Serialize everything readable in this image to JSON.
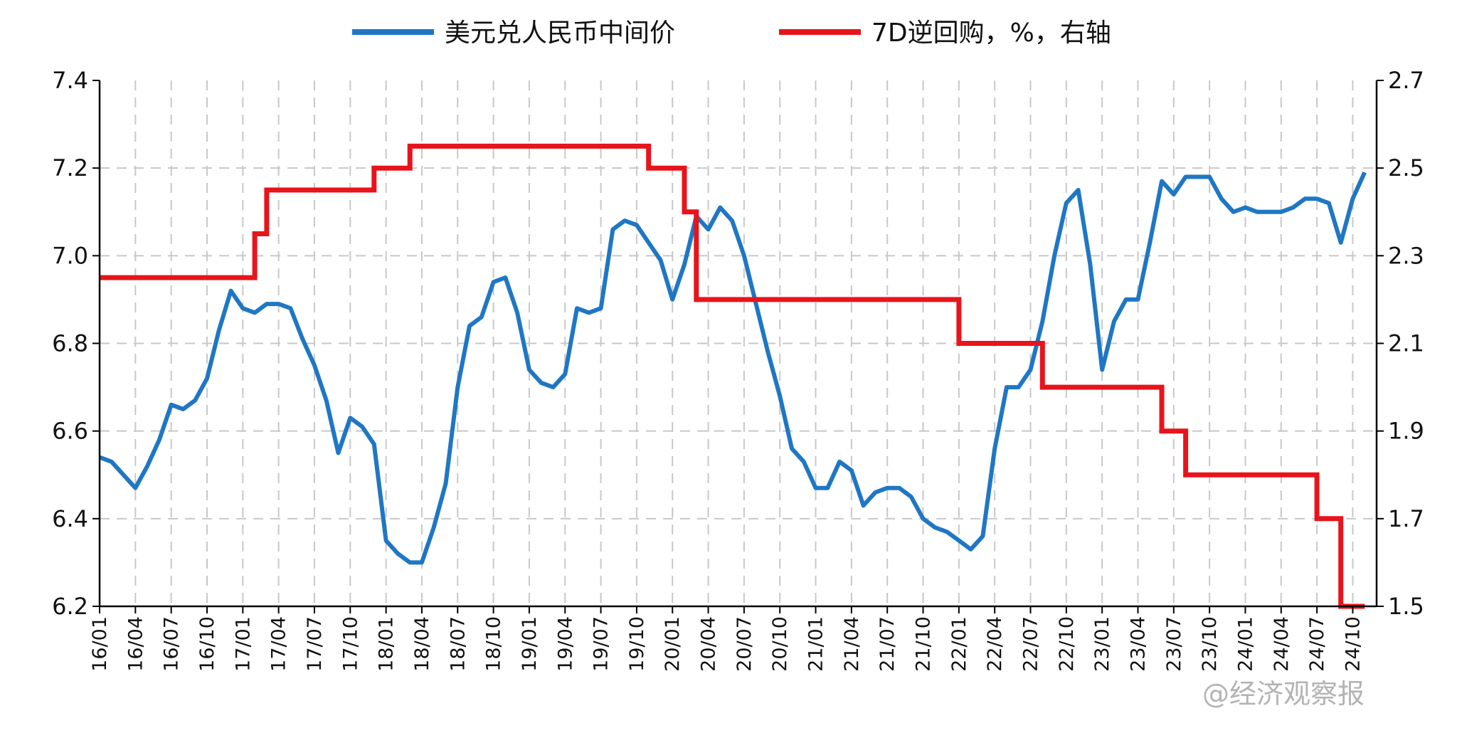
{
  "chart_data": {
    "type": "line",
    "legend": [
      {
        "name": "美元兑人民币中间价",
        "color": "#1f77c4"
      },
      {
        "name": "7D逆回购，%，右轴",
        "color": "#e8141b"
      }
    ],
    "watermark": "@经济观察报",
    "x_categories": [
      "16/01",
      "16/04",
      "16/07",
      "16/10",
      "17/01",
      "17/04",
      "17/07",
      "17/10",
      "18/01",
      "18/04",
      "18/07",
      "18/10",
      "19/01",
      "19/04",
      "19/07",
      "19/10",
      "20/01",
      "20/04",
      "20/07",
      "20/10",
      "21/01",
      "21/04",
      "21/07",
      "21/10",
      "22/01",
      "22/04",
      "22/07",
      "22/10",
      "23/01",
      "23/04",
      "23/07",
      "23/10",
      "24/01",
      "24/04",
      "24/07",
      "24/10"
    ],
    "y_left": {
      "min": 6.2,
      "max": 7.4,
      "ticks": [
        "6.2",
        "6.4",
        "6.6",
        "6.8",
        "7.0",
        "7.2",
        "7.4"
      ]
    },
    "y_right": {
      "min": 1.5,
      "max": 2.7,
      "ticks": [
        "1.5",
        "1.7",
        "1.9",
        "2.1",
        "2.3",
        "2.5",
        "2.7"
      ]
    },
    "grid": true,
    "series": [
      {
        "name": "美元兑人民币中间价",
        "axis": "left",
        "color": "#1f77c4",
        "points": [
          [
            "16/01",
            6.54
          ],
          [
            "16/02",
            6.53
          ],
          [
            "16/03",
            6.5
          ],
          [
            "16/04",
            6.47
          ],
          [
            "16/05",
            6.52
          ],
          [
            "16/06",
            6.58
          ],
          [
            "16/07",
            6.66
          ],
          [
            "16/08",
            6.65
          ],
          [
            "16/09",
            6.67
          ],
          [
            "16/10",
            6.72
          ],
          [
            "16/11",
            6.83
          ],
          [
            "16/12",
            6.92
          ],
          [
            "17/01",
            6.88
          ],
          [
            "17/02",
            6.87
          ],
          [
            "17/03",
            6.89
          ],
          [
            "17/04",
            6.89
          ],
          [
            "17/05",
            6.88
          ],
          [
            "17/06",
            6.81
          ],
          [
            "17/07",
            6.75
          ],
          [
            "17/08",
            6.67
          ],
          [
            "17/09",
            6.55
          ],
          [
            "17/10",
            6.63
          ],
          [
            "17/11",
            6.61
          ],
          [
            "17/12",
            6.57
          ],
          [
            "18/01",
            6.35
          ],
          [
            "18/02",
            6.32
          ],
          [
            "18/03",
            6.3
          ],
          [
            "18/04",
            6.3
          ],
          [
            "18/05",
            6.38
          ],
          [
            "18/06",
            6.48
          ],
          [
            "18/07",
            6.7
          ],
          [
            "18/08",
            6.84
          ],
          [
            "18/09",
            6.86
          ],
          [
            "18/10",
            6.94
          ],
          [
            "18/11",
            6.95
          ],
          [
            "18/12",
            6.87
          ],
          [
            "19/01",
            6.74
          ],
          [
            "19/02",
            6.71
          ],
          [
            "19/03",
            6.7
          ],
          [
            "19/04",
            6.73
          ],
          [
            "19/05",
            6.88
          ],
          [
            "19/06",
            6.87
          ],
          [
            "19/07",
            6.88
          ],
          [
            "19/08",
            7.06
          ],
          [
            "19/09",
            7.08
          ],
          [
            "19/10",
            7.07
          ],
          [
            "19/11",
            7.03
          ],
          [
            "19/12",
            6.99
          ],
          [
            "20/01",
            6.9
          ],
          [
            "20/02",
            6.98
          ],
          [
            "20/03",
            7.09
          ],
          [
            "20/04",
            7.06
          ],
          [
            "20/05",
            7.11
          ],
          [
            "20/06",
            7.08
          ],
          [
            "20/07",
            7.0
          ],
          [
            "20/08",
            6.89
          ],
          [
            "20/09",
            6.78
          ],
          [
            "20/10",
            6.68
          ],
          [
            "20/11",
            6.56
          ],
          [
            "20/12",
            6.53
          ],
          [
            "21/01",
            6.47
          ],
          [
            "21/02",
            6.47
          ],
          [
            "21/03",
            6.53
          ],
          [
            "21/04",
            6.51
          ],
          [
            "21/05",
            6.43
          ],
          [
            "21/06",
            6.46
          ],
          [
            "21/07",
            6.47
          ],
          [
            "21/08",
            6.47
          ],
          [
            "21/09",
            6.45
          ],
          [
            "21/10",
            6.4
          ],
          [
            "21/11",
            6.38
          ],
          [
            "21/12",
            6.37
          ],
          [
            "22/01",
            6.35
          ],
          [
            "22/02",
            6.33
          ],
          [
            "22/03",
            6.36
          ],
          [
            "22/04",
            6.56
          ],
          [
            "22/05",
            6.7
          ],
          [
            "22/06",
            6.7
          ],
          [
            "22/07",
            6.74
          ],
          [
            "22/08",
            6.85
          ],
          [
            "22/09",
            7.0
          ],
          [
            "22/10",
            7.12
          ],
          [
            "22/11",
            7.15
          ],
          [
            "22/12",
            6.98
          ],
          [
            "23/01",
            6.74
          ],
          [
            "23/02",
            6.85
          ],
          [
            "23/03",
            6.9
          ],
          [
            "23/04",
            6.9
          ],
          [
            "23/05",
            7.03
          ],
          [
            "23/06",
            7.17
          ],
          [
            "23/07",
            7.14
          ],
          [
            "23/08",
            7.18
          ],
          [
            "23/09",
            7.18
          ],
          [
            "23/10",
            7.18
          ],
          [
            "23/11",
            7.13
          ],
          [
            "23/12",
            7.1
          ],
          [
            "24/01",
            7.11
          ],
          [
            "24/02",
            7.1
          ],
          [
            "24/03",
            7.1
          ],
          [
            "24/04",
            7.1
          ],
          [
            "24/05",
            7.11
          ],
          [
            "24/06",
            7.13
          ],
          [
            "24/07",
            7.13
          ],
          [
            "24/08",
            7.12
          ],
          [
            "24/09",
            7.03
          ],
          [
            "24/10",
            7.13
          ],
          [
            "24/11",
            7.19
          ]
        ]
      },
      {
        "name": "7D逆回购，%，右轴",
        "axis": "right",
        "color": "#e8141b",
        "step": true,
        "points": [
          [
            "16/01",
            2.25
          ],
          [
            "17/02",
            2.35
          ],
          [
            "17/03",
            2.45
          ],
          [
            "17/12",
            2.5
          ],
          [
            "18/03",
            2.55
          ],
          [
            "19/11",
            2.5
          ],
          [
            "20/02",
            2.4
          ],
          [
            "20/03",
            2.2
          ],
          [
            "22/01",
            2.1
          ],
          [
            "22/08",
            2.0
          ],
          [
            "23/06",
            1.9
          ],
          [
            "23/08",
            1.8
          ],
          [
            "24/07",
            1.7
          ],
          [
            "24/09",
            1.5
          ],
          [
            "24/11",
            1.5
          ]
        ]
      }
    ]
  }
}
